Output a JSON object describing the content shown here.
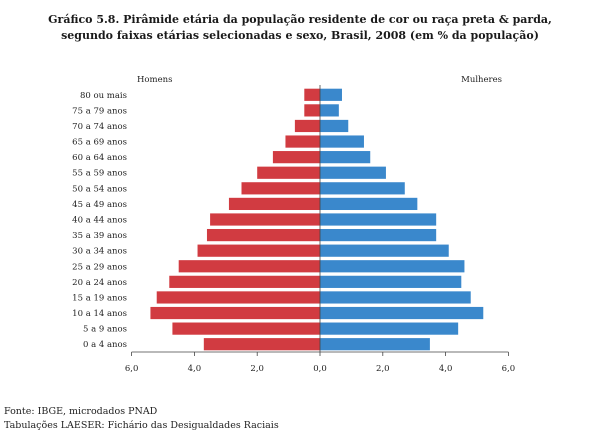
{
  "titles": {
    "line1": "Gráfico 5.8. Pirâmide etária da população residente de cor ou raça preta & parda,",
    "line2": "segundo faixas etárias selecionadas e sexo, Brasil, 2008 (em % da população)"
  },
  "notes": {
    "source": "Fonte: IBGE, microdados PNAD",
    "tabulation": "Tabulações LAESER: Fichário das Desigualdades Raciais"
  },
  "colors": {
    "men": "#d13b41",
    "women": "#3a88cc",
    "axis": "#444444"
  },
  "chart_data": {
    "type": "bar",
    "orientation": "horizontal-pyramid",
    "title": "Gráfico 5.8. Pirâmide etária da população residente de cor ou raça preta & parda, segundo faixas etárias selecionadas e sexo, Brasil, 2008 (em % da população)",
    "categories": [
      "80 ou mais",
      "75 a 79 anos",
      "70 a 74 anos",
      "65 a 69 anos",
      "60 a 64 anos",
      "55 a 59 anos",
      "50 a 54 anos",
      "45 a 49 anos",
      "40 a 44 anos",
      "35 a 39 anos",
      "30 a 34 anos",
      "25 a 29 anos",
      "20 a 24 anos",
      "15 a 19 anos",
      "10 a 14 anos",
      "5 a 9 anos",
      "0 a 4 anos"
    ],
    "series": [
      {
        "name": "Homens",
        "side": "left",
        "values": [
          0.5,
          0.5,
          0.8,
          1.1,
          1.5,
          2.0,
          2.5,
          2.9,
          3.5,
          3.6,
          3.9,
          4.5,
          4.8,
          5.2,
          5.4,
          4.7,
          3.7
        ]
      },
      {
        "name": "Mulheres",
        "side": "right",
        "values": [
          0.7,
          0.6,
          0.9,
          1.4,
          1.6,
          2.1,
          2.7,
          3.1,
          3.7,
          3.7,
          4.1,
          4.6,
          4.5,
          4.8,
          5.2,
          4.4,
          3.5
        ]
      }
    ],
    "xlim": [
      -6,
      6
    ],
    "xticks": [
      "6,0",
      "4,0",
      "2,0",
      "0,0",
      "2,0",
      "4,0",
      "6,0"
    ],
    "grid": false,
    "legend": "top"
  }
}
